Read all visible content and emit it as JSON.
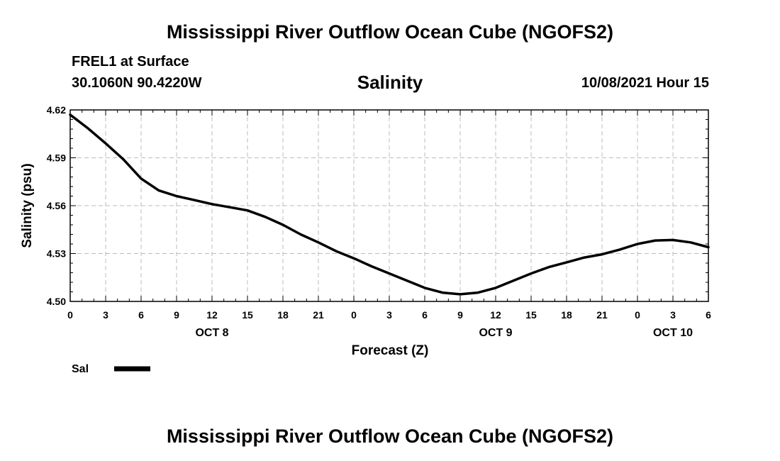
{
  "header": {
    "title": "Mississippi River Outflow Ocean Cube (NGOFS2)",
    "station": "FREL1 at Surface",
    "coords": "30.1060N  90.4220W",
    "variable": "Salinity",
    "datetime": "10/08/2021 Hour 15"
  },
  "footer": {
    "title": "Mississippi River Outflow Ocean Cube (NGOFS2)"
  },
  "colors": {
    "line": "#000000",
    "grid": "#bbbbbb",
    "axis": "#000000"
  },
  "chart_data": {
    "type": "line",
    "xlabel": "Forecast (Z)",
    "ylabel": "Salinity (psu)",
    "xlim": [
      0,
      54
    ],
    "ylim": [
      4.5,
      4.62
    ],
    "grid": true,
    "legend_placement": "bottom-left",
    "xticks": [
      0,
      3,
      6,
      9,
      12,
      15,
      18,
      21,
      24,
      27,
      30,
      33,
      36,
      39,
      42,
      45,
      48,
      51,
      54
    ],
    "xtick_labels": [
      "0",
      "3",
      "6",
      "9",
      "12",
      "15",
      "18",
      "21",
      "0",
      "3",
      "6",
      "9",
      "12",
      "15",
      "18",
      "21",
      "0",
      "3",
      "6"
    ],
    "yticks": [
      4.5,
      4.53,
      4.56,
      4.59,
      4.62
    ],
    "ytick_labels": [
      "4.50",
      "4.53",
      "4.56",
      "4.59",
      "4.62"
    ],
    "date_labels": [
      {
        "x": 12,
        "label": "OCT 8"
      },
      {
        "x": 36,
        "label": "OCT 9"
      },
      {
        "x": 51,
        "label": "OCT 10"
      }
    ],
    "series": [
      {
        "name": "Sal",
        "x": [
          0,
          1.5,
          3,
          4.5,
          6,
          7.5,
          9,
          10.5,
          12,
          13.5,
          15,
          16.5,
          18,
          19.5,
          21,
          22.5,
          24,
          25.5,
          27,
          28.5,
          30,
          31.5,
          33,
          34.5,
          36,
          37.5,
          39,
          40.5,
          42,
          43.5,
          45,
          46.5,
          48,
          49.5,
          51,
          52.5,
          54
        ],
        "values": [
          4.617,
          4.6085,
          4.599,
          4.589,
          4.577,
          4.5695,
          4.566,
          4.5635,
          4.561,
          4.559,
          4.557,
          4.553,
          4.548,
          4.542,
          4.537,
          4.5315,
          4.527,
          4.522,
          4.5175,
          4.513,
          4.5085,
          4.5055,
          4.5045,
          4.5055,
          4.5085,
          4.513,
          4.5175,
          4.5215,
          4.5245,
          4.5275,
          4.5295,
          4.5325,
          4.536,
          4.5382,
          4.5385,
          4.537,
          4.534
        ]
      }
    ]
  }
}
